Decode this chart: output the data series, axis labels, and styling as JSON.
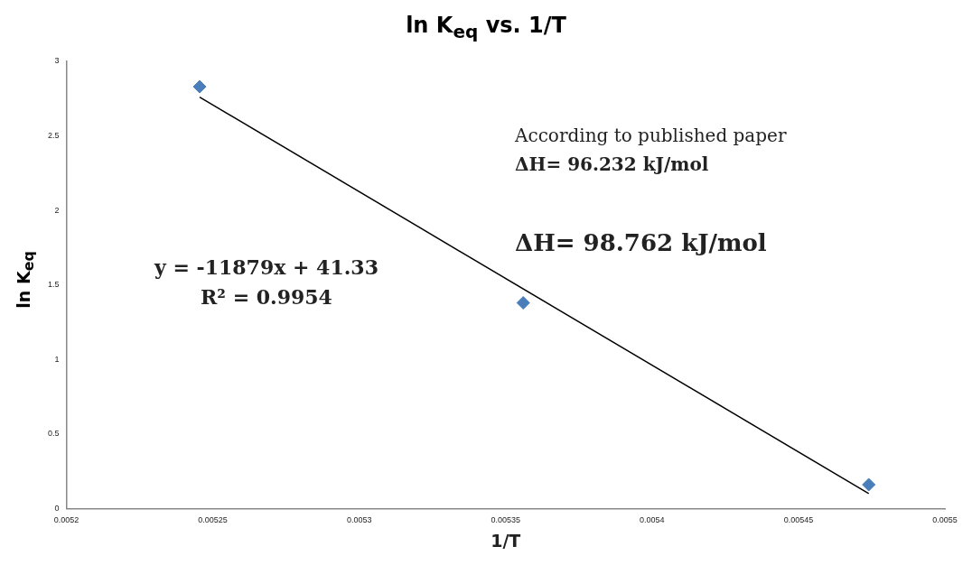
{
  "chart_data": {
    "type": "scatter",
    "title": "ln K$_{eq}$ vs. 1/T",
    "xlabel": "1/T",
    "ylabel": "ln K$_{eq}$",
    "series": [
      {
        "color": "#4a7ebb",
        "x": [
          0.0052455,
          0.005356,
          0.005474
        ],
        "values": [
          2.83,
          1.38,
          0.16
        ],
        "marker": "diamond"
      },
      {
        "type": "line",
        "color": "#000000",
        "x": [
          0.0052455,
          0.005474
        ],
        "values": [
          2.76,
          0.1
        ],
        "marker": "none"
      }
    ],
    "xlim": [
      0.0052,
      0.0055
    ],
    "xticks": [
      0.0052,
      0.00525,
      0.0053,
      0.00535,
      0.0054,
      0.00545,
      0.0055
    ],
    "ylim": [
      0,
      3
    ],
    "yticks": [
      0,
      0.5,
      1,
      1.5,
      2,
      2.5,
      3
    ],
    "grid": false,
    "legend": false,
    "annotations": [
      "y = -11879x + 41.33",
      "R² = 0.9954",
      "According to published paper",
      "ΔH= 96.232 kJ/mol",
      "ΔH= 98.762 kJ/mol"
    ]
  }
}
